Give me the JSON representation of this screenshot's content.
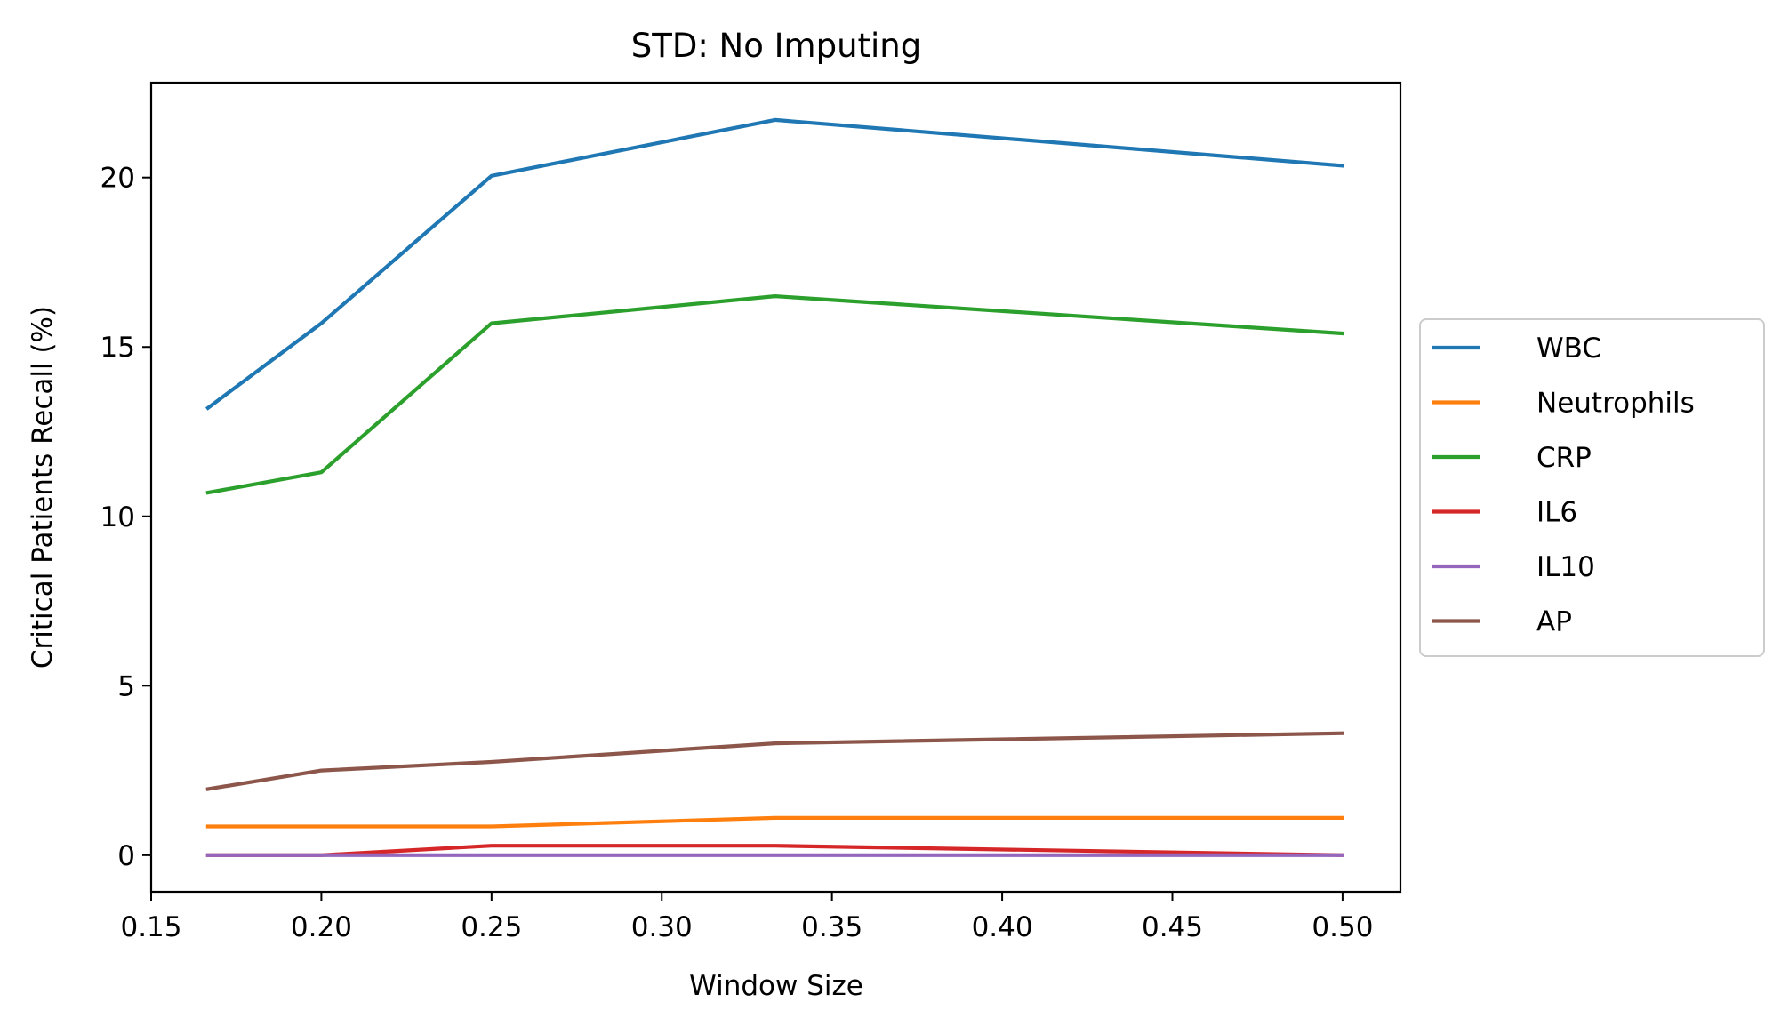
{
  "chart_data": {
    "type": "line",
    "title": "STD: No Imputing",
    "xlabel": "Window Size",
    "ylabel": "Critical Patients Recall (%)",
    "xlim": [
      0.15,
      0.517
    ],
    "ylim": [
      -1.08,
      22.8
    ],
    "x_ticks": [
      0.15,
      0.2,
      0.25,
      0.3,
      0.35,
      0.4,
      0.45,
      0.5
    ],
    "x_tick_labels": [
      "0.15",
      "0.20",
      "0.25",
      "0.30",
      "0.35",
      "0.40",
      "0.45",
      "0.50"
    ],
    "y_ticks": [
      0,
      5,
      10,
      15,
      20
    ],
    "y_tick_labels": [
      "0",
      "5",
      "10",
      "15",
      "20"
    ],
    "grid": false,
    "legend_position": "outside-right",
    "x": [
      0.1667,
      0.2,
      0.25,
      0.3333,
      0.5
    ],
    "series": [
      {
        "name": "WBC",
        "color": "#1f77b4",
        "values": [
          13.2,
          15.7,
          20.05,
          21.7,
          20.35
        ]
      },
      {
        "name": "Neutrophils",
        "color": "#ff7f0e",
        "values": [
          0.85,
          0.85,
          0.85,
          1.1,
          1.1
        ]
      },
      {
        "name": "CRP",
        "color": "#2ca02c",
        "values": [
          10.7,
          11.3,
          15.7,
          16.5,
          15.4
        ]
      },
      {
        "name": "IL6",
        "color": "#d62728",
        "values": [
          0.0,
          0.0,
          0.28,
          0.28,
          0.0
        ]
      },
      {
        "name": "IL10",
        "color": "#9467bd",
        "values": [
          0.0,
          0.0,
          0.0,
          0.0,
          0.0
        ]
      },
      {
        "name": "AP",
        "color": "#8c564b",
        "values": [
          1.95,
          2.5,
          2.75,
          3.3,
          3.6
        ]
      }
    ]
  }
}
